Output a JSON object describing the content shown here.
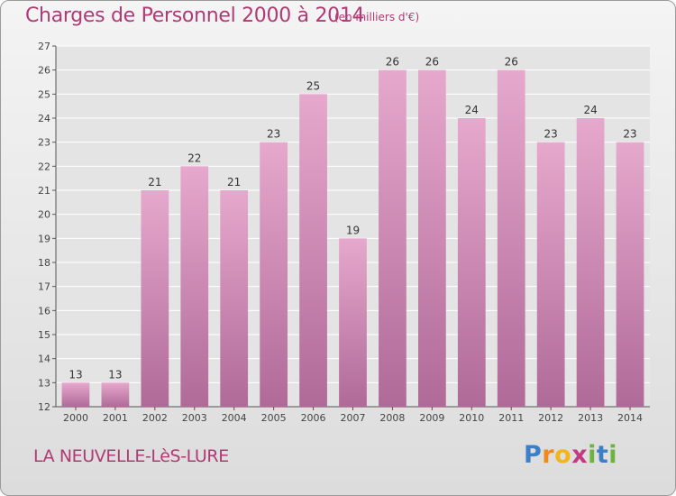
{
  "title": "Charges de Personnel 2000 à 2014",
  "subtitle": "(en milliers d'€)",
  "commune": "LA NEUVELLE-LèS-LURE",
  "logo": {
    "letters": [
      "P",
      "r",
      "o",
      "x",
      "i",
      "t",
      "i"
    ],
    "colors": [
      "#3a7fc9",
      "#f08a1c",
      "#f3b51d",
      "#c23a83",
      "#6db33f",
      "#3a7fc9",
      "#6db33f"
    ]
  },
  "colors": {
    "accent": "#b03a74",
    "bar_top": "#e6a8cd",
    "bar_bottom": "#b06a98"
  },
  "chart_data": {
    "type": "bar",
    "title": "Charges de Personnel 2000 à 2014",
    "subtitle": "(en milliers d'€)",
    "categories": [
      "2000",
      "2001",
      "2002",
      "2003",
      "2004",
      "2005",
      "2006",
      "2007",
      "2008",
      "2009",
      "2010",
      "2011",
      "2012",
      "2013",
      "2014"
    ],
    "values": [
      13,
      13,
      21,
      22,
      21,
      23,
      25,
      19,
      26,
      26,
      24,
      26,
      23,
      24,
      23
    ],
    "ylim": [
      12,
      27
    ],
    "yticks": [
      12,
      13,
      14,
      15,
      16,
      17,
      18,
      19,
      20,
      21,
      22,
      23,
      24,
      25,
      26,
      27
    ],
    "grid": true,
    "xlabel": "",
    "ylabel": ""
  }
}
